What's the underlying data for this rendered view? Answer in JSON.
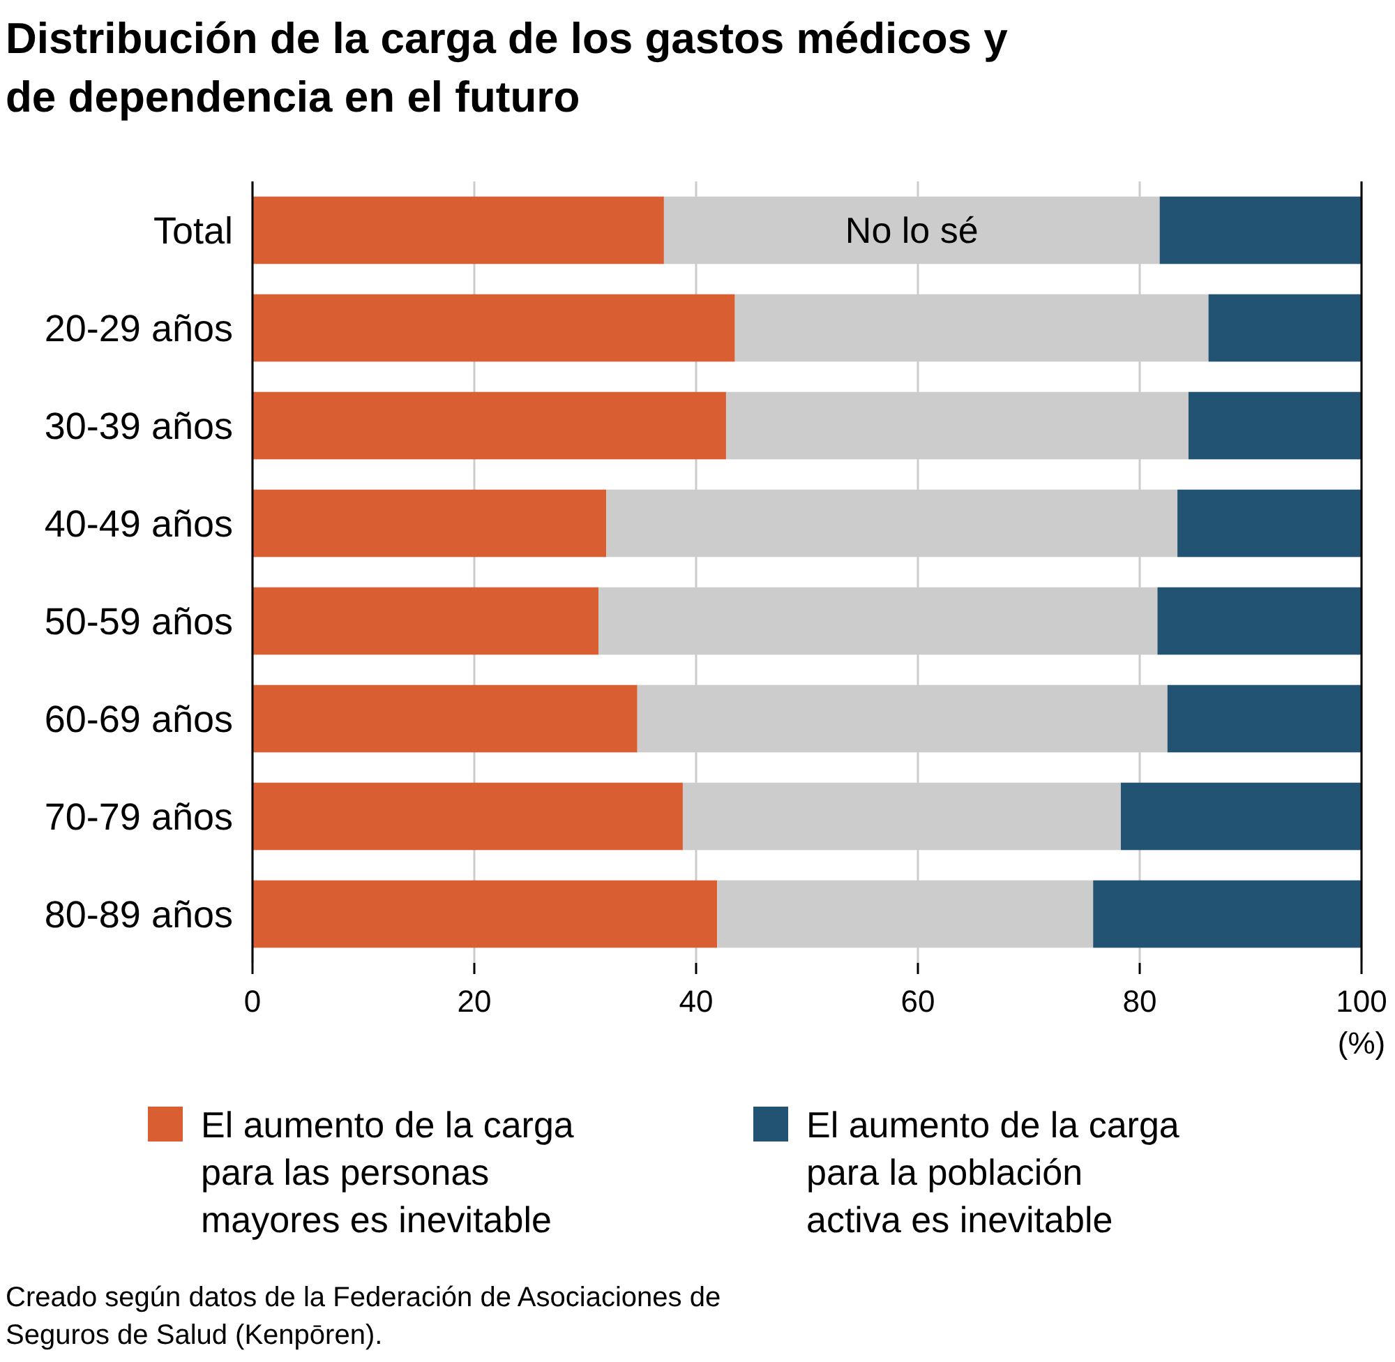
{
  "chart_data": {
    "type": "bar",
    "orientation": "horizontal",
    "stacked": true,
    "title": "Distribución de la carga de los gastos médicos y de dependencia en el futuro",
    "xlabel": "(%)",
    "categories": [
      "Total",
      "20-29 años",
      "30-39 años",
      "40-49 años",
      "50-59 años",
      "60-69 años",
      "70-79 años",
      "80-89 años"
    ],
    "series": [
      {
        "name": "El aumento de la carga para las personas mayores es inevitable",
        "color": "#d95f33",
        "values": [
          37.1,
          43.5,
          42.7,
          31.9,
          31.2,
          34.7,
          38.8,
          41.9
        ]
      },
      {
        "name": "No lo sé",
        "color": "#cccccc",
        "values": [
          44.7,
          42.7,
          41.7,
          51.5,
          50.4,
          47.8,
          39.5,
          33.9
        ]
      },
      {
        "name": "El aumento de la carga para la población activa es inevitable",
        "color": "#225373",
        "values": [
          18.2,
          13.8,
          15.6,
          16.6,
          18.4,
          17.5,
          21.7,
          24.2
        ]
      }
    ],
    "xlim": [
      0,
      100
    ],
    "xticks": [
      0,
      20,
      40,
      60,
      80,
      100
    ],
    "grid": "x",
    "legend": "bottom",
    "annotations": [
      "Creado según datos de la Federación de Asociaciones de Seguros de Salud (Kenpōren)."
    ]
  }
}
